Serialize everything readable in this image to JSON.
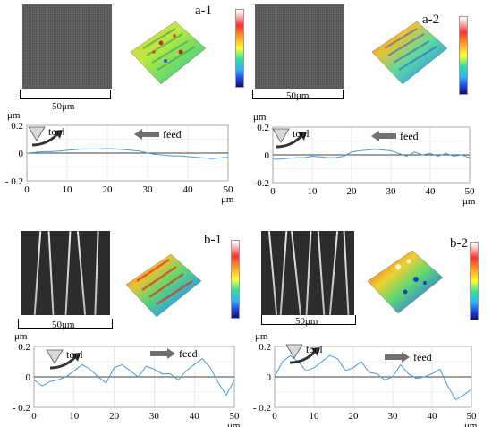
{
  "panels": [
    {
      "id": "a-1",
      "label": "a-1",
      "scale": "50μm"
    },
    {
      "id": "a-2",
      "label": "a-2",
      "scale": "50μm"
    },
    {
      "id": "b-1",
      "label": "b-1",
      "scale": "50μm"
    },
    {
      "id": "b-2",
      "label": "b-2",
      "scale": "50μm"
    }
  ],
  "profile_text": {
    "unit_y": "μm",
    "unit_x": "μm",
    "tool": "tool",
    "feed": "feed"
  },
  "colors": {
    "profile_line": "#4a9ae0",
    "zero_line": "#000000",
    "arrow": "#707070"
  },
  "chart_data": [
    {
      "type": "line",
      "panel": "a-1",
      "xlim": [
        0,
        50
      ],
      "ylim": [
        -0.2,
        0.2
      ],
      "yticks": [
        "0.2",
        "0",
        "- 0.2"
      ],
      "xticks": [
        "0",
        "10",
        "20",
        "30",
        "40",
        "50"
      ],
      "x": [
        0,
        2,
        4,
        6,
        8,
        10,
        12,
        14,
        16,
        18,
        20,
        22,
        24,
        26,
        28,
        30,
        32,
        34,
        36,
        38,
        40,
        42,
        44,
        46,
        48,
        50
      ],
      "y": [
        0.0,
        0.005,
        0.01,
        0.01,
        0.015,
        0.02,
        0.025,
        0.03,
        0.03,
        0.03,
        0.032,
        0.03,
        0.025,
        0.02,
        0.015,
        0.0,
        -0.01,
        -0.015,
        -0.02,
        -0.02,
        -0.025,
        -0.03,
        -0.035,
        -0.04,
        -0.035,
        -0.03
      ]
    },
    {
      "type": "line",
      "panel": "a-2",
      "xlim": [
        0,
        50
      ],
      "ylim": [
        -0.2,
        0.2
      ],
      "yticks": [
        "0.2",
        "0",
        "- 0.2"
      ],
      "xticks": [
        "0",
        "10",
        "20",
        "30",
        "40",
        "50"
      ],
      "x": [
        0,
        2,
        4,
        6,
        8,
        10,
        12,
        14,
        16,
        18,
        20,
        22,
        24,
        26,
        28,
        30,
        32,
        34,
        36,
        38,
        40,
        42,
        44,
        46,
        48,
        50
      ],
      "y": [
        -0.03,
        -0.03,
        -0.025,
        -0.02,
        -0.02,
        -0.01,
        -0.015,
        -0.02,
        -0.02,
        -0.01,
        0.02,
        0.03,
        0.035,
        0.04,
        0.035,
        0.03,
        0.01,
        -0.01,
        0.02,
        0.0,
        0.01,
        -0.01,
        0.01,
        -0.01,
        0.0,
        -0.02
      ]
    },
    {
      "type": "line",
      "panel": "b-1",
      "xlim": [
        0,
        50
      ],
      "ylim": [
        -0.2,
        0.2
      ],
      "yticks": [
        "0.2",
        "0",
        "- 0.2"
      ],
      "xticks": [
        "0",
        "10",
        "20",
        "30",
        "40",
        "50"
      ],
      "x": [
        0,
        2,
        4,
        6,
        8,
        10,
        12,
        14,
        16,
        18,
        20,
        22,
        24,
        26,
        28,
        30,
        32,
        34,
        36,
        38,
        40,
        42,
        44,
        46,
        48,
        50
      ],
      "y": [
        -0.02,
        -0.06,
        -0.03,
        -0.02,
        0.0,
        0.04,
        0.08,
        0.05,
        0.0,
        -0.04,
        0.06,
        0.08,
        0.04,
        0.0,
        0.07,
        0.05,
        0.02,
        0.02,
        -0.02,
        0.04,
        0.08,
        0.12,
        0.06,
        -0.04,
        -0.12,
        -0.02
      ]
    },
    {
      "type": "line",
      "panel": "b-2",
      "xlim": [
        0,
        50
      ],
      "ylim": [
        -0.2,
        0.2
      ],
      "yticks": [
        "0.2",
        "0",
        "- 0.2"
      ],
      "xticks": [
        "0",
        "10",
        "20",
        "30",
        "40",
        "50"
      ],
      "x": [
        0,
        2,
        4,
        6,
        8,
        10,
        12,
        14,
        16,
        18,
        20,
        22,
        24,
        26,
        28,
        30,
        32,
        34,
        36,
        38,
        40,
        42,
        44,
        46,
        48,
        50
      ],
      "y": [
        0.0,
        0.1,
        0.14,
        0.1,
        0.04,
        0.06,
        0.1,
        0.14,
        0.12,
        0.04,
        0.06,
        0.1,
        0.03,
        0.02,
        -0.02,
        0.0,
        0.08,
        0.02,
        -0.01,
        0.0,
        0.02,
        0.05,
        -0.06,
        -0.15,
        -0.12,
        -0.08
      ]
    }
  ]
}
